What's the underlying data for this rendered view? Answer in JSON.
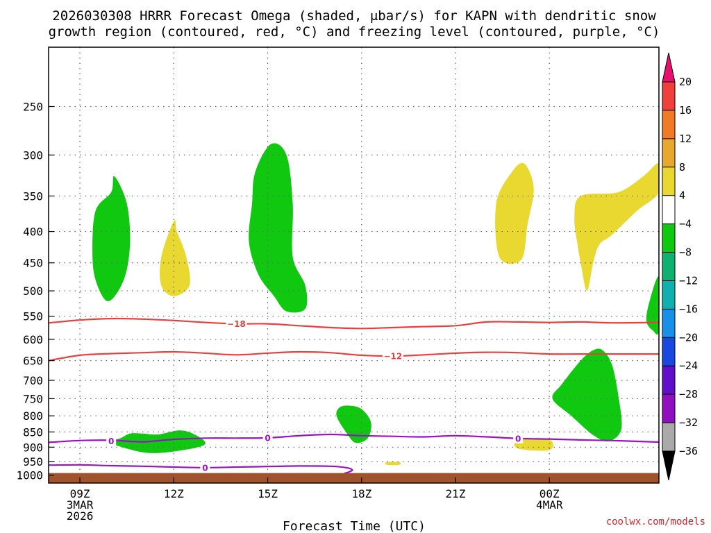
{
  "title_lines": [
    "2026030308 HRRR Forecast Omega (shaded, μbar/s) for KAPN with dendritic snow",
    "growth region (contoured, red, °C) and freezing level (contoured, purple, °C)"
  ],
  "credit": "coolwx.com/models",
  "colors": {
    "ground": "#a0522d",
    "dgz_contour": "#e8403c",
    "freezing_contour": "#9b10c8",
    "grid": "#666666"
  },
  "chart_data": {
    "type": "heatmap",
    "title": "2026030308 HRRR Forecast Omega (shaded, μbar/s) for KAPN with dendritic snow growth region (contoured, red, °C) and freezing level (contoured, purple, °C)",
    "xlabel": "Forecast Time (UTC)",
    "ylabel": "",
    "x_unit": "forecast hours from 2026-03-03 09Z",
    "xlim": [
      -1,
      18.5
    ],
    "ylim": [
      1030,
      200
    ],
    "y_scale": "log-pressure (hPa)",
    "grid": true,
    "x_ticks": [
      {
        "hour": 0,
        "lines": [
          "09Z",
          "3MAR",
          "2026"
        ]
      },
      {
        "hour": 3,
        "lines": [
          "12Z"
        ]
      },
      {
        "hour": 6,
        "lines": [
          "15Z"
        ]
      },
      {
        "hour": 9,
        "lines": [
          "18Z"
        ]
      },
      {
        "hour": 12,
        "lines": [
          "21Z"
        ]
      },
      {
        "hour": 15,
        "lines": [
          "00Z",
          "4MAR"
        ]
      }
    ],
    "y_ticks": [
      250,
      300,
      350,
      400,
      450,
      500,
      550,
      600,
      650,
      700,
      750,
      800,
      850,
      900,
      950,
      1000
    ],
    "colorbar": {
      "labels": [
        "20",
        "16",
        "12",
        "8",
        "4",
        "−4",
        "−8",
        "−12",
        "−16",
        "−20",
        "−24",
        "−28",
        "−32",
        "−36"
      ],
      "colors": [
        "#e8106e",
        "#f0403c",
        "#f07a28",
        "#e8a830",
        "#e8d830",
        "#ffffff",
        "#10c810",
        "#10b070",
        "#10b0b0",
        "#1890e8",
        "#1848e0",
        "#6010c8",
        "#9010c0",
        "#aaaaaa",
        "#000000"
      ]
    },
    "shaded_regions": [
      {
        "name": "omega ≤ -4",
        "color": "#10c810",
        "points": [
          [
            1.6,
            855
          ],
          [
            1.3,
            870
          ],
          [
            1.0,
            880
          ],
          [
            1.2,
            895
          ],
          [
            2.2,
            920
          ],
          [
            3.3,
            910
          ],
          [
            4.0,
            890
          ],
          [
            3.7,
            860
          ],
          [
            3.2,
            845
          ],
          [
            2.5,
            858
          ],
          [
            2.0,
            855
          ]
        ]
      },
      {
        "name": "omega ≤ -4",
        "color": "#10c810",
        "points": [
          [
            1.0,
            345
          ],
          [
            0.5,
            370
          ],
          [
            0.4,
            430
          ],
          [
            0.5,
            480
          ],
          [
            0.9,
            520
          ],
          [
            1.4,
            480
          ],
          [
            1.6,
            420
          ],
          [
            1.5,
            360
          ],
          [
            1.1,
            325
          ]
        ]
      },
      {
        "name": "omega ≤ -4",
        "color": "#10c810",
        "points": [
          [
            6.1,
            288
          ],
          [
            5.6,
            320
          ],
          [
            5.5,
            360
          ],
          [
            5.4,
            415
          ],
          [
            5.7,
            470
          ],
          [
            6.2,
            510
          ],
          [
            6.6,
            540
          ],
          [
            7.2,
            535
          ],
          [
            7.2,
            490
          ],
          [
            6.8,
            440
          ],
          [
            6.8,
            360
          ],
          [
            6.6,
            300
          ]
        ]
      },
      {
        "name": "omega ≤ -4",
        "color": "#10c810",
        "points": [
          [
            8.3,
            775
          ],
          [
            8.2,
            800
          ],
          [
            8.5,
            850
          ],
          [
            8.8,
            885
          ],
          [
            9.2,
            870
          ],
          [
            9.3,
            820
          ],
          [
            9.0,
            780
          ],
          [
            8.6,
            770
          ]
        ]
      },
      {
        "name": "omega ≤ -4",
        "color": "#10c810",
        "points": [
          [
            16.4,
            625
          ],
          [
            16.0,
            650
          ],
          [
            15.4,
            710
          ],
          [
            15.1,
            750
          ],
          [
            15.7,
            800
          ],
          [
            16.4,
            860
          ],
          [
            16.9,
            880
          ],
          [
            17.3,
            840
          ],
          [
            17.2,
            740
          ],
          [
            17.0,
            660
          ],
          [
            16.7,
            625
          ]
        ]
      },
      {
        "name": "omega ≤ -4",
        "color": "#10c810",
        "points": [
          [
            18.5,
            475
          ],
          [
            18.2,
            520
          ],
          [
            18.1,
            560
          ],
          [
            18.3,
            580
          ],
          [
            18.5,
            580
          ]
        ]
      },
      {
        "name": "omega ≥ 4",
        "color": "#e8d830",
        "points": [
          [
            3.0,
            385
          ],
          [
            2.6,
            440
          ],
          [
            2.6,
            490
          ],
          [
            3.0,
            510
          ],
          [
            3.5,
            490
          ],
          [
            3.4,
            440
          ],
          [
            3.1,
            400
          ]
        ]
      },
      {
        "name": "omega ≥ 4",
        "color": "#e8d830",
        "points": [
          [
            13.8,
            320
          ],
          [
            13.3,
            360
          ],
          [
            13.4,
            440
          ],
          [
            14.1,
            445
          ],
          [
            14.3,
            390
          ],
          [
            14.5,
            340
          ],
          [
            14.2,
            310
          ]
        ]
      },
      {
        "name": "omega ≥ 4",
        "color": "#e8d830",
        "points": [
          [
            16.0,
            350
          ],
          [
            15.8,
            380
          ],
          [
            15.9,
            420
          ],
          [
            16.0,
            450
          ],
          [
            16.2,
            500
          ],
          [
            16.4,
            450
          ],
          [
            16.6,
            420
          ],
          [
            17.0,
            405
          ],
          [
            17.8,
            370
          ],
          [
            18.5,
            345
          ],
          [
            18.5,
            310
          ],
          [
            18.0,
            325
          ],
          [
            17.2,
            345
          ]
        ]
      },
      {
        "name": "omega ≥ 4",
        "color": "#e8d830",
        "points": [
          [
            14.0,
            875
          ],
          [
            14.0,
            905
          ],
          [
            15.0,
            910
          ],
          [
            15.0,
            875
          ]
        ]
      },
      {
        "name": "omega ≥ 4",
        "color": "#e8d830",
        "points": [
          [
            9.8,
            952
          ],
          [
            9.8,
            962
          ],
          [
            10.2,
            962
          ],
          [
            10.2,
            952
          ]
        ]
      }
    ],
    "contours": [
      {
        "name": "dendritic growth -18 °C",
        "value": -18,
        "color": "#e8403c",
        "points": [
          [
            -1,
            564
          ],
          [
            0,
            558
          ],
          [
            1,
            555
          ],
          [
            2,
            556
          ],
          [
            3,
            559
          ],
          [
            4,
            563
          ],
          [
            5,
            566
          ],
          [
            6,
            566
          ],
          [
            7,
            570
          ],
          [
            8,
            574
          ],
          [
            9,
            576
          ],
          [
            10,
            574
          ],
          [
            11,
            572
          ],
          [
            12,
            570
          ],
          [
            13,
            562
          ],
          [
            14,
            562
          ],
          [
            15,
            563
          ],
          [
            16,
            562
          ],
          [
            17,
            564
          ],
          [
            18.5,
            563
          ]
        ],
        "label": "−18",
        "label_at": [
          5.0,
          566
        ]
      },
      {
        "name": "dendritic growth -12 °C",
        "value": -12,
        "color": "#e8403c",
        "points": [
          [
            -1,
            650
          ],
          [
            0,
            637
          ],
          [
            1,
            633
          ],
          [
            2,
            631
          ],
          [
            3,
            629
          ],
          [
            4,
            632
          ],
          [
            5,
            636
          ],
          [
            6,
            632
          ],
          [
            7,
            629
          ],
          [
            8,
            631
          ],
          [
            9,
            637
          ],
          [
            10,
            639
          ],
          [
            11,
            636
          ],
          [
            12,
            632
          ],
          [
            13,
            630
          ],
          [
            14,
            631
          ],
          [
            15,
            634
          ],
          [
            16,
            634
          ],
          [
            17,
            634
          ],
          [
            18.5,
            634
          ]
        ],
        "label": "−12",
        "label_at": [
          10.0,
          639
        ]
      },
      {
        "name": "freezing level 0 °C (upper)",
        "value": 0,
        "color": "#9b10c8",
        "points": [
          [
            -1,
            884
          ],
          [
            0,
            878
          ],
          [
            1,
            877
          ],
          [
            2,
            882
          ],
          [
            3,
            874
          ],
          [
            4,
            870
          ],
          [
            5,
            870
          ],
          [
            6,
            869
          ],
          [
            7,
            862
          ],
          [
            8,
            858
          ],
          [
            9,
            862
          ],
          [
            10,
            864
          ],
          [
            11,
            866
          ],
          [
            12,
            862
          ],
          [
            13,
            866
          ],
          [
            14,
            871
          ],
          [
            15,
            873
          ],
          [
            16,
            876
          ],
          [
            17,
            878
          ],
          [
            18.5,
            883
          ]
        ],
        "labels": [
          "0",
          "0",
          "0"
        ],
        "labels_at": [
          [
            1.0,
            879
          ],
          [
            6.0,
            869
          ],
          [
            14.0,
            871
          ]
        ]
      },
      {
        "name": "freezing level 0 °C (lower)",
        "value": 0,
        "color": "#9b10c8",
        "points": [
          [
            -1,
            963
          ],
          [
            0,
            962
          ],
          [
            1,
            965
          ],
          [
            2,
            967
          ],
          [
            3,
            970
          ],
          [
            4,
            972
          ],
          [
            5,
            970
          ],
          [
            6,
            968
          ],
          [
            7,
            966
          ],
          [
            8,
            967
          ],
          [
            8.5,
            972
          ],
          [
            8.7,
            980
          ],
          [
            8.6,
            988
          ],
          [
            8.45,
            993
          ]
        ],
        "labels": [
          "0"
        ],
        "labels_at": [
          [
            4.0,
            972
          ]
        ]
      }
    ],
    "ground": {
      "top_hpa": 992,
      "color": "#a0522d"
    }
  }
}
